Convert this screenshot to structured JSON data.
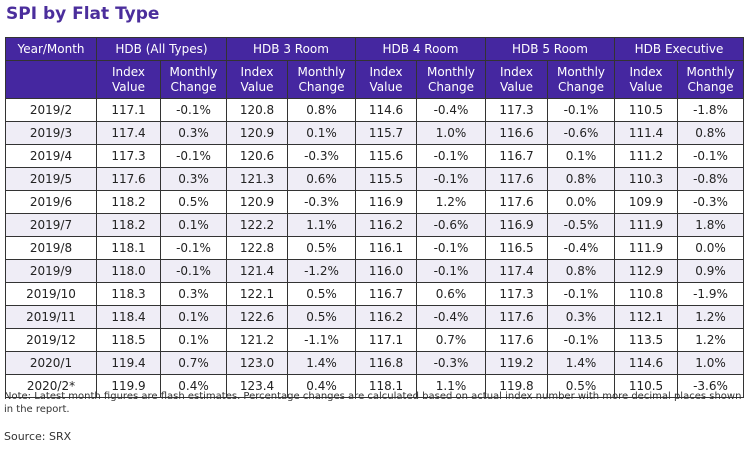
{
  "title": "SPI by Flat Type",
  "columns": {
    "year_month": "Year/Month",
    "groups": [
      "HDB (All Types)",
      "HDB 3 Room",
      "HDB 4 Room",
      "HDB 5 Room",
      "HDB Executive"
    ],
    "sub": {
      "index": "Index Value",
      "change": "Monthly Change"
    }
  },
  "rows": [
    {
      "period": "2019/2",
      "values": [
        "117.1",
        "-0.1%",
        "120.8",
        "0.8%",
        "114.6",
        "-0.4%",
        "117.3",
        "-0.1%",
        "110.5",
        "-1.8%"
      ]
    },
    {
      "period": "2019/3",
      "values": [
        "117.4",
        "0.3%",
        "120.9",
        "0.1%",
        "115.7",
        "1.0%",
        "116.6",
        "-0.6%",
        "111.4",
        "0.8%"
      ]
    },
    {
      "period": "2019/4",
      "values": [
        "117.3",
        "-0.1%",
        "120.6",
        "-0.3%",
        "115.6",
        "-0.1%",
        "116.7",
        "0.1%",
        "111.2",
        "-0.1%"
      ]
    },
    {
      "period": "2019/5",
      "values": [
        "117.6",
        "0.3%",
        "121.3",
        "0.6%",
        "115.5",
        "-0.1%",
        "117.6",
        "0.8%",
        "110.3",
        "-0.8%"
      ]
    },
    {
      "period": "2019/6",
      "values": [
        "118.2",
        "0.5%",
        "120.9",
        "-0.3%",
        "116.9",
        "1.2%",
        "117.6",
        "0.0%",
        "109.9",
        "-0.3%"
      ]
    },
    {
      "period": "2019/7",
      "values": [
        "118.2",
        "0.1%",
        "122.2",
        "1.1%",
        "116.2",
        "-0.6%",
        "116.9",
        "-0.5%",
        "111.9",
        "1.8%"
      ]
    },
    {
      "period": "2019/8",
      "values": [
        "118.1",
        "-0.1%",
        "122.8",
        "0.5%",
        "116.1",
        "-0.1%",
        "116.5",
        "-0.4%",
        "111.9",
        "0.0%"
      ]
    },
    {
      "period": "2019/9",
      "values": [
        "118.0",
        "-0.1%",
        "121.4",
        "-1.2%",
        "116.0",
        "-0.1%",
        "117.4",
        "0.8%",
        "112.9",
        "0.9%"
      ]
    },
    {
      "period": "2019/10",
      "values": [
        "118.3",
        "0.3%",
        "122.1",
        "0.5%",
        "116.7",
        "0.6%",
        "117.3",
        "-0.1%",
        "110.8",
        "-1.9%"
      ]
    },
    {
      "period": "2019/11",
      "values": [
        "118.4",
        "0.1%",
        "122.6",
        "0.5%",
        "116.2",
        "-0.4%",
        "117.6",
        "0.3%",
        "112.1",
        "1.2%"
      ]
    },
    {
      "period": "2019/12",
      "values": [
        "118.5",
        "0.1%",
        "121.2",
        "-1.1%",
        "117.1",
        "0.7%",
        "117.6",
        "-0.1%",
        "113.5",
        "1.2%"
      ]
    },
    {
      "period": "2020/1",
      "values": [
        "119.4",
        "0.7%",
        "123.0",
        "1.4%",
        "116.8",
        "-0.3%",
        "119.2",
        "1.4%",
        "114.6",
        "1.0%"
      ]
    },
    {
      "period": "2020/2*",
      "values": [
        "119.9",
        "0.4%",
        "123.4",
        "0.4%",
        "118.1",
        "1.1%",
        "119.8",
        "0.5%",
        "110.5",
        "-3.6%"
      ]
    }
  ],
  "note": "Note: Latest month figures are flash estimates. Percentage changes are calculated based on actual index number with more decimal places shown in the report.",
  "source": "Source: SRX",
  "colors": {
    "header_bg": "#4527a0",
    "title": "#4b2e9c",
    "alt_row": "#efedf6"
  }
}
